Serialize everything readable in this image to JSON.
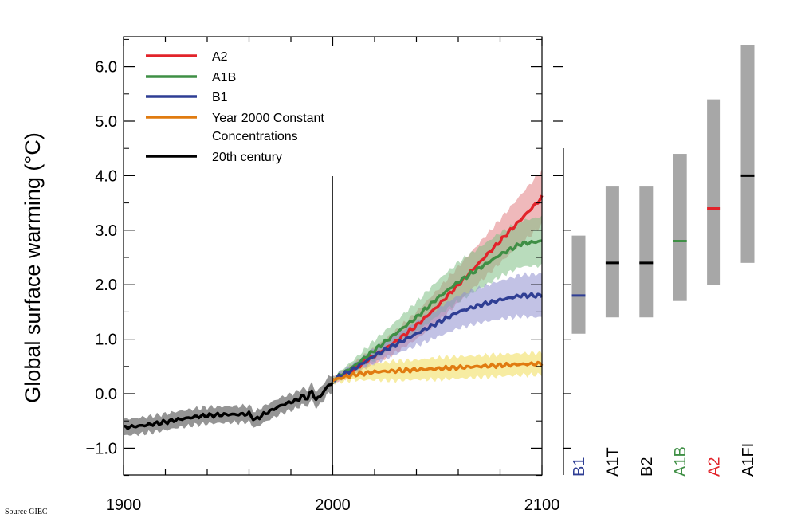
{
  "source_note": "Source GIEC",
  "chart_data": {
    "type": "line",
    "title": "",
    "ylabel": "Global surface warming (°C)",
    "xlabel": "",
    "xlim": [
      1900,
      2100
    ],
    "ylim": [
      -1.5,
      6.5
    ],
    "x_ticks": [
      1900,
      2000,
      2100
    ],
    "x_tick_labels": [
      "1900",
      "2000",
      "2100"
    ],
    "y_ticks": [
      -1.0,
      0.0,
      1.0,
      2.0,
      3.0,
      4.0,
      5.0,
      6.0
    ],
    "y_tick_labels": [
      "−1.0",
      "0.0",
      "1.0",
      "2.0",
      "3.0",
      "4.0",
      "5.0",
      "6.0"
    ],
    "vertical_marker_x": 2000,
    "legend_position": "top-left",
    "legend": [
      {
        "label": "A2",
        "color": "#e2232a"
      },
      {
        "label": "A1B",
        "color": "#3f8f45"
      },
      {
        "label": "B1",
        "color": "#2f3e94"
      },
      {
        "label": "Year 2000 Constant",
        "label2": "Concentrations",
        "color": "#e07b10"
      },
      {
        "label": "20th century",
        "color": "#000000"
      }
    ],
    "series": [
      {
        "name": "20th century",
        "color": "#000000",
        "band_color": "#7a7a7a",
        "x": [
          1900,
          1905,
          1910,
          1915,
          1920,
          1925,
          1930,
          1935,
          1940,
          1945,
          1950,
          1955,
          1960,
          1963,
          1966,
          1970,
          1975,
          1980,
          1983,
          1985,
          1988,
          1990,
          1992,
          1995,
          1998,
          2000
        ],
        "y": [
          -0.62,
          -0.6,
          -0.58,
          -0.55,
          -0.52,
          -0.48,
          -0.45,
          -0.42,
          -0.4,
          -0.39,
          -0.38,
          -0.38,
          -0.37,
          -0.48,
          -0.4,
          -0.32,
          -0.22,
          -0.15,
          -0.12,
          -0.05,
          -0.08,
          0.05,
          -0.12,
          0.0,
          0.16,
          0.2
        ],
        "band_half_width": 0.15
      },
      {
        "name": "A2",
        "color": "#e2232a",
        "band_color": "#e27f83",
        "x": [
          2000,
          2010,
          2020,
          2030,
          2040,
          2050,
          2060,
          2070,
          2080,
          2090,
          2100
        ],
        "y": [
          0.25,
          0.45,
          0.7,
          0.95,
          1.25,
          1.6,
          2.0,
          2.4,
          2.8,
          3.2,
          3.6
        ],
        "band_half_width": [
          0.05,
          0.1,
          0.15,
          0.2,
          0.25,
          0.3,
          0.33,
          0.36,
          0.4,
          0.45,
          0.5
        ]
      },
      {
        "name": "A1B",
        "color": "#3f8f45",
        "band_color": "#7fbf85",
        "x": [
          2000,
          2010,
          2020,
          2030,
          2040,
          2050,
          2060,
          2070,
          2080,
          2090,
          2100
        ],
        "y": [
          0.25,
          0.5,
          0.8,
          1.1,
          1.4,
          1.75,
          2.05,
          2.3,
          2.55,
          2.75,
          2.8
        ],
        "band_half_width": [
          0.05,
          0.12,
          0.18,
          0.22,
          0.28,
          0.32,
          0.36,
          0.38,
          0.4,
          0.42,
          0.45
        ]
      },
      {
        "name": "B1",
        "color": "#2f3e94",
        "band_color": "#8f8fd0",
        "x": [
          2000,
          2010,
          2020,
          2030,
          2040,
          2050,
          2060,
          2070,
          2080,
          2090,
          2100
        ],
        "y": [
          0.25,
          0.45,
          0.7,
          0.9,
          1.1,
          1.3,
          1.5,
          1.62,
          1.72,
          1.8,
          1.8
        ],
        "band_half_width": [
          0.05,
          0.1,
          0.14,
          0.18,
          0.22,
          0.26,
          0.3,
          0.32,
          0.35,
          0.38,
          0.4
        ]
      },
      {
        "name": "Year 2000 Constant Concentrations",
        "color": "#e07b10",
        "band_color": "#f0dc55",
        "x": [
          2000,
          2010,
          2020,
          2030,
          2040,
          2050,
          2060,
          2070,
          2080,
          2090,
          2100
        ],
        "y": [
          0.25,
          0.35,
          0.4,
          0.42,
          0.44,
          0.46,
          0.48,
          0.5,
          0.52,
          0.54,
          0.55
        ],
        "band_half_width": [
          0.05,
          0.1,
          0.15,
          0.18,
          0.18,
          0.2,
          0.2,
          0.2,
          0.2,
          0.2,
          0.2
        ]
      }
    ],
    "range_bars": [
      {
        "scenario": "B1",
        "low": 1.1,
        "high": 2.9,
        "best": 1.8,
        "label_color": "#2f3e94",
        "best_color": "#2f3e94"
      },
      {
        "scenario": "A1T",
        "low": 1.4,
        "high": 3.8,
        "best": 2.4,
        "label_color": "#000000",
        "best_color": "#000000"
      },
      {
        "scenario": "B2",
        "low": 1.4,
        "high": 3.8,
        "best": 2.4,
        "label_color": "#000000",
        "best_color": "#000000"
      },
      {
        "scenario": "A1B",
        "low": 1.7,
        "high": 4.4,
        "best": 2.8,
        "label_color": "#3f8f45",
        "best_color": "#3f8f45"
      },
      {
        "scenario": "A2",
        "low": 2.0,
        "high": 5.4,
        "best": 3.4,
        "label_color": "#e2232a",
        "best_color": "#e2232a"
      },
      {
        "scenario": "A1FI",
        "low": 2.4,
        "high": 6.4,
        "best": 4.0,
        "label_color": "#000000",
        "best_color": "#000000"
      }
    ],
    "range_bar_color": "#a7a7a7"
  }
}
